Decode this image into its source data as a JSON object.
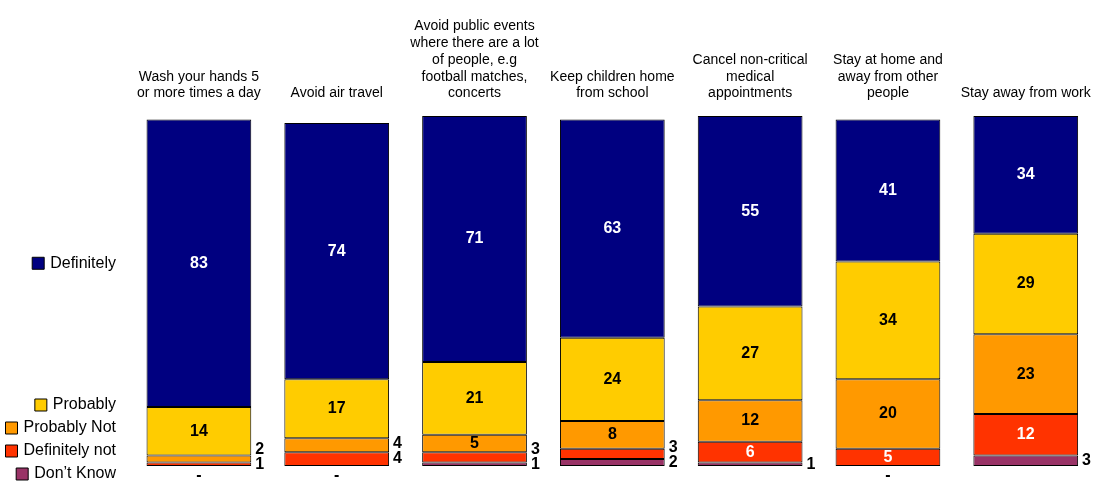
{
  "chart_data": {
    "type": "bar",
    "stacked": true,
    "tick_labels": "x",
    "annotations": [
      {
        "text": "-",
        "x": "Wash your hands 5 or more times a day",
        "y": 0
      },
      {
        "text": "-",
        "x": "Avoid air travel",
        "y": 0
      },
      {
        "text": "-",
        "x": "Stay at home and away from other people",
        "y": 0
      }
    ],
    "legend": "left",
    "grid": false,
    "categories": [
      "Wash your hands 5 or more times a day",
      "Avoid air travel",
      "Avoid public events where there are a lot of people, e.g football matches, concerts",
      "Keep children home from school",
      "Cancel non-critical medical appointments",
      "Stay at home and away from other people",
      "Stay away from work"
    ],
    "series": [
      {
        "name": "Don’t Know",
        "color": "#993366",
        "values": [
          0,
          0,
          1,
          2,
          1,
          0,
          3
        ],
        "value_labels": [
          null,
          null,
          "1",
          "2",
          "1",
          null,
          "3"
        ]
      },
      {
        "name": "Definitely not",
        "color": "#ff3300",
        "values": [
          1,
          4,
          3,
          3,
          6,
          5,
          12
        ],
        "value_labels": [
          "1",
          "4",
          "3",
          "3",
          "6",
          "5",
          "12"
        ]
      },
      {
        "name": "Probably Not",
        "color": "#ff9900",
        "values": [
          2,
          4,
          5,
          8,
          12,
          20,
          23
        ],
        "value_labels": [
          "2",
          "4",
          "5",
          "8",
          "12",
          "20",
          "23"
        ]
      },
      {
        "name": "Probably",
        "color": "#ffcc00",
        "values": [
          14,
          17,
          21,
          24,
          27,
          34,
          29
        ],
        "value_labels": [
          "14",
          "17",
          "21",
          "24",
          "27",
          "34",
          "29"
        ]
      },
      {
        "name": "Definitely",
        "color": "#000080",
        "values": [
          83,
          74,
          71,
          63,
          55,
          41,
          34
        ],
        "value_labels": [
          "83",
          "74",
          "71",
          "63",
          "55",
          "41",
          "34"
        ]
      }
    ]
  }
}
